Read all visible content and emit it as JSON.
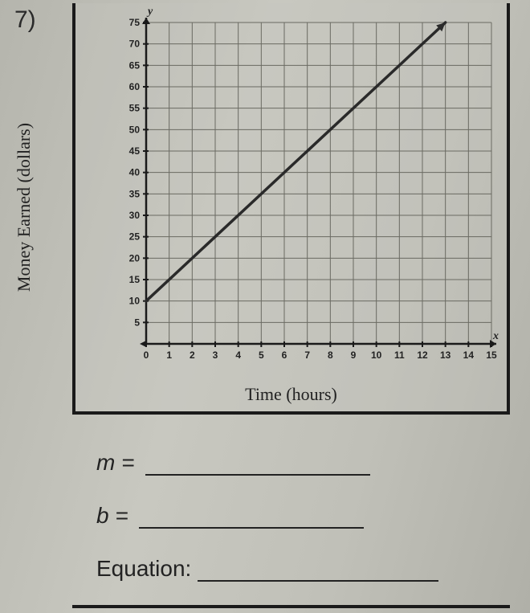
{
  "problem_number": "7)",
  "chart": {
    "type": "line",
    "xlabel": "Time (hours)",
    "ylabel": "Money Earned (dollars)",
    "y_axis_symbol": "y",
    "x_axis_symbol": "x",
    "xlim": [
      0,
      15
    ],
    "ylim": [
      0,
      75
    ],
    "xtick_step": 1,
    "ytick_step": 5,
    "xtick_labels": [
      "0",
      "1",
      "2",
      "3",
      "4",
      "5",
      "6",
      "7",
      "8",
      "9",
      "10",
      "11",
      "12",
      "13",
      "14",
      "15"
    ],
    "ytick_labels": [
      "5",
      "10",
      "15",
      "20",
      "25",
      "30",
      "35",
      "40",
      "45",
      "50",
      "55",
      "60",
      "65",
      "70",
      "75"
    ],
    "grid_color": "#6a6a62",
    "axis_color": "#1a1a1a",
    "line_color": "#2a2a2a",
    "line_width": 3.5,
    "background_color": "#c4c4bc",
    "tick_fontsize": 12,
    "label_fontsize": 22,
    "line_points": [
      {
        "x": 0,
        "y": 10
      },
      {
        "x": 13,
        "y": 75
      }
    ],
    "arrowhead": true
  },
  "answers": {
    "m_label": "m = ",
    "m_value": "",
    "b_label": "b = ",
    "b_value": "",
    "equation_label": "Equation:",
    "equation_value": ""
  }
}
